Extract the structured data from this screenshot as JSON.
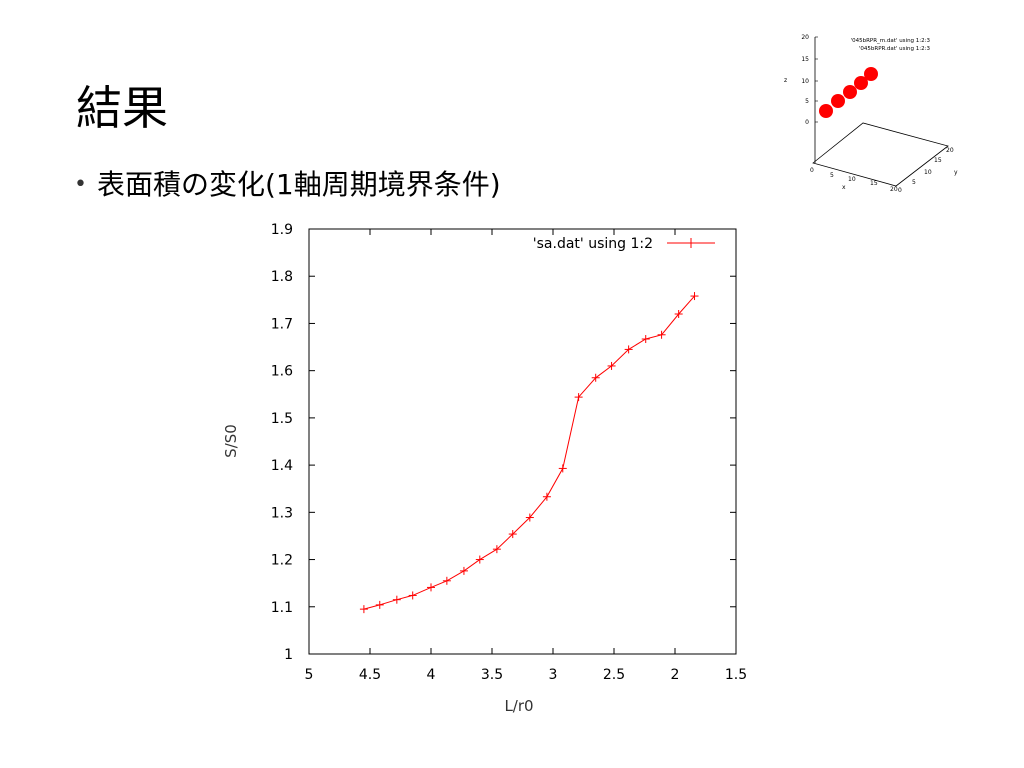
{
  "slide": {
    "title": "結果",
    "bullet": "表面積の変化(1軸周期境界条件)",
    "bullet_marker": "•"
  },
  "inset": {
    "legend": [
      "'045bRPR_m.dat' using 1:2:3",
      "'045bRPR.dat' using 1:2:3"
    ],
    "z_label": "z",
    "x_label": "x",
    "y_label": "y",
    "z_ticks": [
      "20",
      "15",
      "10",
      "5",
      "0"
    ],
    "x_ticks": [
      "0",
      "5",
      "10",
      "15",
      "20"
    ],
    "y_ticks": [
      "0",
      "5",
      "10",
      "15",
      "20"
    ],
    "sphere_color": "#ff0000"
  },
  "chart_data": {
    "type": "line",
    "xlabel": "L/r0",
    "ylabel": "S/S0",
    "xlim": [
      5,
      1.5
    ],
    "ylim": [
      1,
      1.9
    ],
    "xticks": [
      5,
      4.5,
      4,
      3.5,
      3,
      2.5,
      2,
      1.5
    ],
    "yticks": [
      1,
      1.1,
      1.2,
      1.3,
      1.4,
      1.5,
      1.6,
      1.7,
      1.8,
      1.9
    ],
    "xtick_labels": [
      "5",
      "4.5",
      "4",
      "3.5",
      "3",
      "2.5",
      "2",
      "1.5"
    ],
    "ytick_labels": [
      "1",
      "1.1",
      "1.2",
      "1.3",
      "1.4",
      "1.5",
      "1.6",
      "1.7",
      "1.8",
      "1.9"
    ],
    "legend_position": "top-right",
    "grid": false,
    "series": [
      {
        "name": "'sa.dat' using 1:2",
        "color": "#ff0000",
        "marker": "plus",
        "x": [
          4.55,
          4.42,
          4.28,
          4.15,
          4.0,
          3.87,
          3.73,
          3.6,
          3.46,
          3.33,
          3.19,
          3.05,
          2.92,
          2.79,
          2.65,
          2.52,
          2.38,
          2.24,
          2.11,
          1.97,
          1.84
        ],
        "y": [
          1.095,
          1.104,
          1.115,
          1.124,
          1.141,
          1.155,
          1.176,
          1.2,
          1.222,
          1.254,
          1.289,
          1.333,
          1.393,
          1.544,
          1.585,
          1.61,
          1.645,
          1.667,
          1.676,
          1.72,
          1.758
        ]
      }
    ]
  }
}
